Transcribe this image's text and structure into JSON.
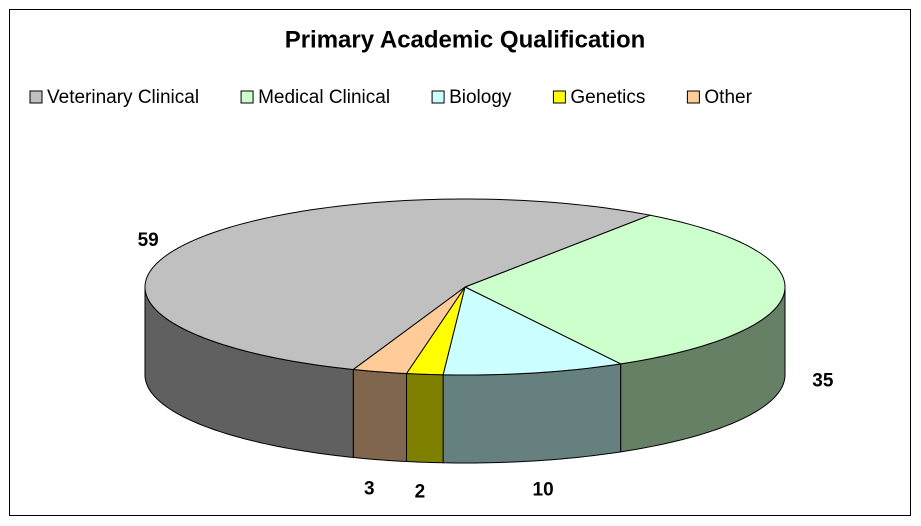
{
  "chart_data": {
    "type": "pie3d",
    "title": "Primary Academic Qualification",
    "categories": [
      "Veterinary Clinical",
      "Medical Clinical",
      "Biology",
      "Genetics",
      "Other"
    ],
    "values": [
      59,
      35,
      10,
      2,
      3
    ],
    "colors": [
      "#c0c0c0",
      "#ccffcc",
      "#ccffff",
      "#ffff00",
      "#ffcc99"
    ],
    "legend": "top"
  }
}
